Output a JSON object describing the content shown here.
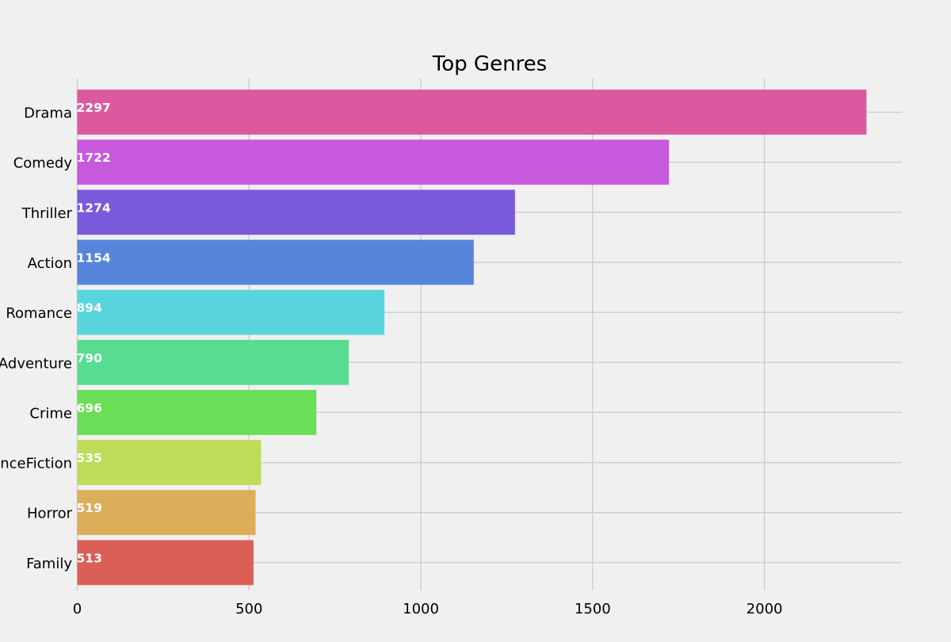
{
  "chart_data": {
    "type": "bar",
    "orientation": "horizontal",
    "title": "Top Genres",
    "xlabel": "",
    "ylabel": "",
    "categories": [
      "Drama",
      "Comedy",
      "Thriller",
      "Action",
      "Romance",
      "Adventure",
      "Crime",
      "ScienceFiction",
      "Horror",
      "Family"
    ],
    "values": [
      2297,
      1722,
      1274,
      1154,
      894,
      790,
      696,
      535,
      519,
      513
    ],
    "data_labels": [
      "2297",
      "1722",
      "1274",
      "1154",
      "894",
      "790",
      "696",
      "535",
      "519",
      "513"
    ],
    "colors": [
      "#db5a9f",
      "#c759dd",
      "#7a5adc",
      "#5785dc",
      "#58d5dc",
      "#57dc91",
      "#6ade57",
      "#bcdc5a",
      "#dcae5a",
      "#db5f57"
    ],
    "xlim": [
      0,
      2400
    ],
    "xticks": [
      0,
      500,
      1000,
      1500,
      2000
    ],
    "xtick_labels": [
      "0",
      "500",
      "1000",
      "1500",
      "2000"
    ],
    "grid": true,
    "background": "#f0f0f0",
    "grid_color": "#cbcbcb"
  }
}
